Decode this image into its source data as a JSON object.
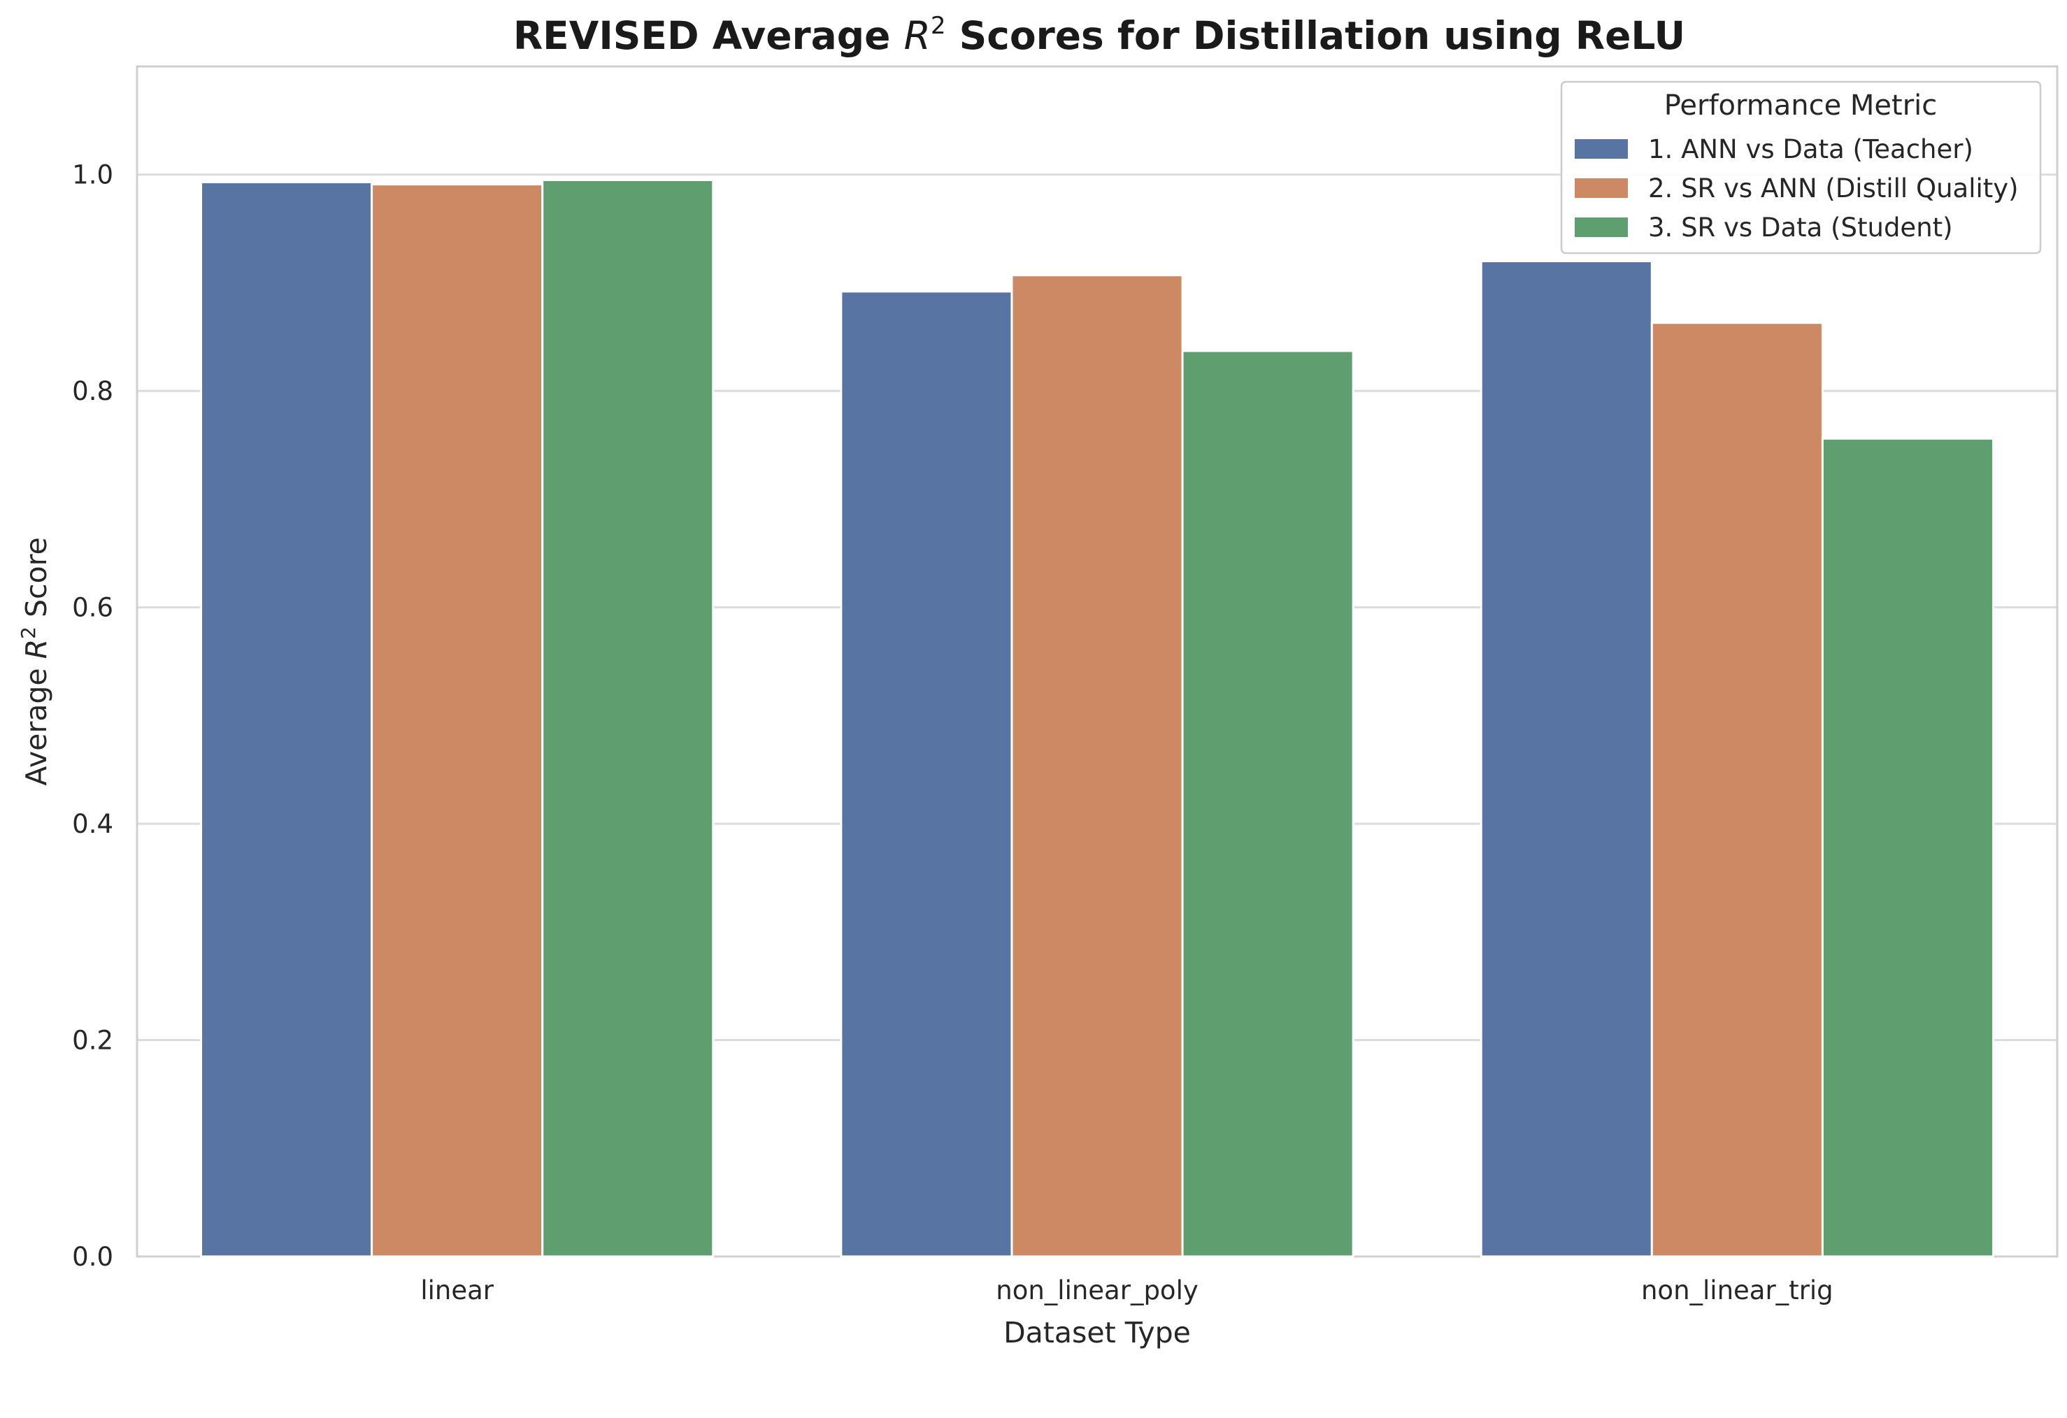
{
  "chart_data": {
    "type": "bar",
    "title": {
      "prefix": "REVISED Average ",
      "math_base": "R",
      "math_exp": "2",
      "suffix": " Scores for Distillation using ReLU"
    },
    "xlabel": "Dataset Type",
    "ylabel": {
      "prefix": "Average ",
      "math_base": "R",
      "math_exp": "2",
      "suffix": " Score"
    },
    "categories": [
      "linear",
      "non_linear_poly",
      "non_linear_trig"
    ],
    "series": [
      {
        "name": "1. ANN vs Data (Teacher)",
        "color": "#5874a3",
        "values": [
          0.993,
          0.892,
          0.92
        ]
      },
      {
        "name": "2. SR vs ANN (Distill Quality)",
        "color": "#cc8963",
        "values": [
          0.991,
          0.907,
          0.863
        ]
      },
      {
        "name": "3. SR vs Data (Student)",
        "color": "#5f9e6e",
        "values": [
          0.995,
          0.837,
          0.756
        ]
      }
    ],
    "ylim": [
      0,
      1.1
    ],
    "yticks": [
      0.0,
      0.2,
      0.4,
      0.6,
      0.8,
      1.0
    ],
    "ytick_labels": [
      "0.0",
      "0.2",
      "0.4",
      "0.6",
      "0.8",
      "1.0"
    ],
    "grid": "horizontal",
    "legend": {
      "title": "Performance Metric",
      "placement": "top-right"
    }
  }
}
